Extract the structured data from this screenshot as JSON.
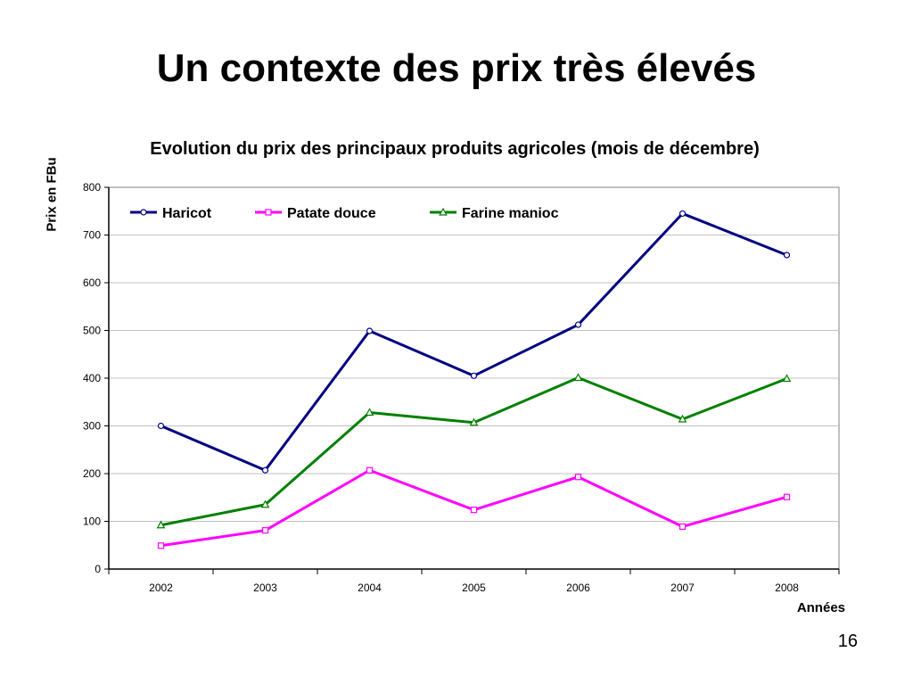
{
  "slide": {
    "title": "Un contexte des prix très élevés",
    "page_number": "16"
  },
  "chart_data": {
    "type": "line",
    "title": "Evolution du prix des principaux produits agricoles (mois de décembre)",
    "xlabel": "Années",
    "ylabel": "Prix en FBu",
    "categories": [
      "2002",
      "2003",
      "2004",
      "2005",
      "2006",
      "2007",
      "2008"
    ],
    "ylim": [
      0,
      800
    ],
    "yticks": [
      0,
      100,
      200,
      300,
      400,
      500,
      600,
      700,
      800
    ],
    "grid": true,
    "legend": "top-left",
    "series": [
      {
        "name": "Haricot",
        "color": "#000080",
        "marker": "circle",
        "values": [
          300,
          207,
          499,
          405,
          512,
          745,
          658
        ]
      },
      {
        "name": "Patate douce",
        "color": "#FF00FF",
        "marker": "square",
        "values": [
          49,
          81,
          207,
          124,
          193,
          89,
          151
        ]
      },
      {
        "name": "Farine manioc",
        "color": "#008000",
        "marker": "triangle",
        "values": [
          92,
          135,
          328,
          307,
          401,
          314,
          399
        ]
      }
    ]
  }
}
